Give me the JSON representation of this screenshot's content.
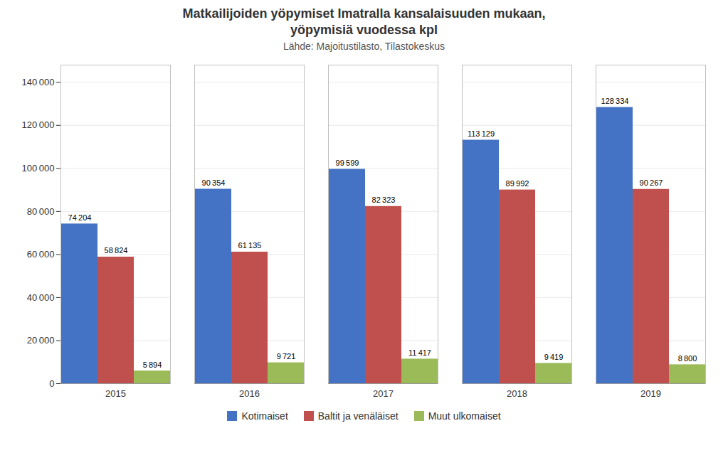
{
  "chart_data": {
    "type": "bar",
    "title": "Matkailijoiden yöpymiset Imatralla kansalaisuuden mukaan,\nyöpymisiä vuodessa kpl",
    "subtitle": "Lähde: Majoitustilasto, Tilastokeskus",
    "categories": [
      "2015",
      "2016",
      "2017",
      "2018",
      "2019"
    ],
    "series": [
      {
        "name": "Kotimaiset",
        "color": "#4472C4",
        "values": [
          74204,
          90354,
          99599,
          113129,
          128334
        ],
        "value_labels": [
          "74 204",
          "90 354",
          "99 599",
          "113 129",
          "128 334"
        ]
      },
      {
        "name": "Baltit ja venäläiset",
        "color": "#C0504D",
        "values": [
          58824,
          61135,
          82323,
          89992,
          90267
        ],
        "value_labels": [
          "58 824",
          "61 135",
          "82 323",
          "89 992",
          "90 267"
        ]
      },
      {
        "name": "Muut ulkomaiset",
        "color": "#9BBB59",
        "values": [
          5894,
          9721,
          11417,
          9419,
          8800
        ],
        "value_labels": [
          "5 894",
          "9 721",
          "11 417",
          "9 419",
          "8 800"
        ]
      }
    ],
    "ylim": [
      0,
      148000
    ],
    "yticks": [
      0,
      {
        "value": 20000,
        "label": "20 000"
      },
      {
        "value": 40000,
        "label": "40 000"
      },
      {
        "value": 60000,
        "label": "60 000"
      },
      {
        "value": 80000,
        "label": "80 000"
      },
      {
        "value": 100000,
        "label": "100 000"
      },
      {
        "value": 120000,
        "label": "120 000"
      },
      {
        "value": 140000,
        "label": "140 000"
      }
    ],
    "grid": true,
    "data_labels": true,
    "legend": "bottom"
  }
}
